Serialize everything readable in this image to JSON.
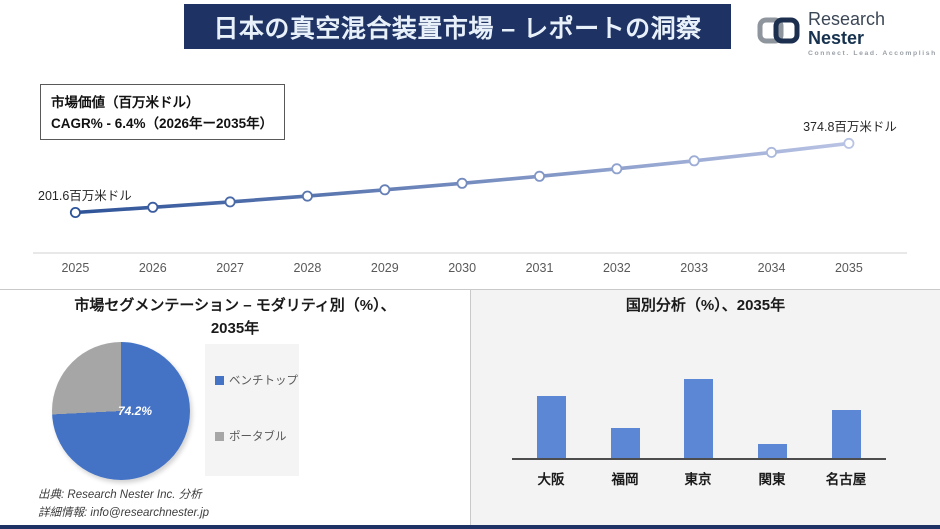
{
  "header": {
    "title": "日本の真空混合装置市場 – レポートの洞察",
    "logo": {
      "brand_word1": "Research",
      "brand_word2": "Nester",
      "tagline": "Connect. Lead. Accomplish"
    }
  },
  "info_box": {
    "line1": "市場価値（百万米ドル）",
    "line2": "CAGR% - 6.4%（2026年ー2035年）"
  },
  "colors": {
    "header_navy": "#1e3263",
    "panel_gray": "#f3f3f3",
    "axis_label_gray": "#595959"
  },
  "chart_data": [
    {
      "type": "line",
      "title": "市場価値（百万米ドル）",
      "x": [
        "2025",
        "2026",
        "2027",
        "2028",
        "2029",
        "2030",
        "2031",
        "2032",
        "2033",
        "2034",
        "2035"
      ],
      "values": [
        201.6,
        214.5,
        228.2,
        242.8,
        258.4,
        274.9,
        292.5,
        311.2,
        331.2,
        352.4,
        374.8
      ],
      "start_label": "201.6百万米ドル",
      "end_label": "374.8百万米ドル",
      "cagr_label": "CAGR% - 6.4%（2026年ー2035年）",
      "ylim": [
        100,
        400
      ],
      "grid": false,
      "line_color_start": "#2e5398",
      "line_color_end": "#b9c3e4",
      "marker": "circle-white-fill"
    },
    {
      "type": "pie",
      "title_line1": "市場セグメンテーション – モダリティ別（%）、",
      "title_line2": "2035年",
      "labels": [
        "ベンチトップ",
        "ポータブル"
      ],
      "values": [
        74.2,
        25.8
      ],
      "colors": [
        "#4472c4",
        "#a6a6a6"
      ],
      "data_label": "74.2%",
      "legend_position": "right"
    },
    {
      "type": "bar",
      "title": "国別分析（%）、2035年",
      "categories": [
        "大阪",
        "福岡",
        "東京",
        "関東",
        "名古屋"
      ],
      "values": [
        26.5,
        13.0,
        33.5,
        6.5,
        20.5
      ],
      "ylim": [
        0,
        40
      ],
      "grid": false,
      "bar_color": "#5b87d5"
    }
  ],
  "footer": {
    "source": "出典: Research Nester Inc. 分析",
    "contact": "詳細情報: info@researchnester.jp"
  }
}
